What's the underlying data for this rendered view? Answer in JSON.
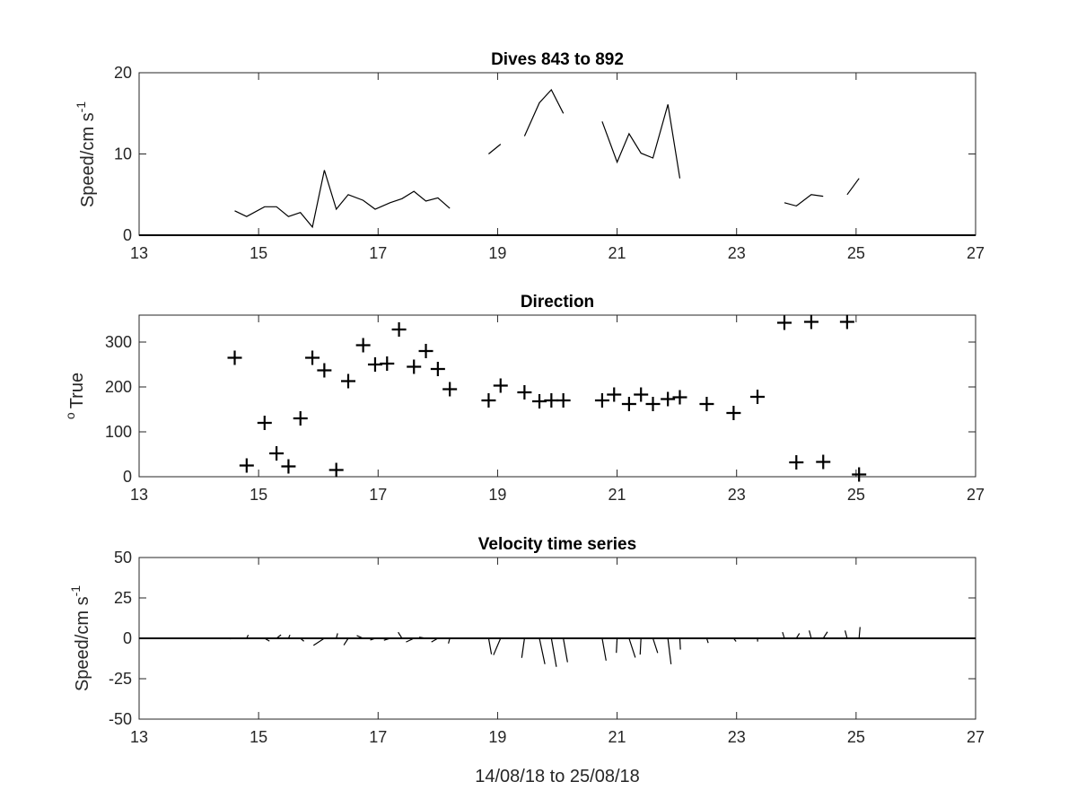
{
  "figure": {
    "xlabel": "14/08/18 to 25/08/18"
  },
  "chart_data": [
    {
      "type": "line",
      "title": "Dives 843 to 892",
      "ylabel": "Speed/cm s",
      "ylabel_sup": "-1",
      "xlim": [
        13,
        27
      ],
      "ylim": [
        0,
        20
      ],
      "xticks": [
        13,
        15,
        17,
        19,
        21,
        23,
        25,
        27
      ],
      "yticks": [
        0,
        10,
        20
      ],
      "baseline": 0,
      "segments": [
        [
          [
            14.6,
            3.0
          ],
          [
            14.8,
            2.3
          ],
          [
            15.1,
            3.5
          ],
          [
            15.3,
            3.5
          ],
          [
            15.5,
            2.3
          ],
          [
            15.7,
            2.8
          ],
          [
            15.9,
            1.0
          ],
          [
            16.1,
            8.0
          ],
          [
            16.3,
            3.2
          ],
          [
            16.5,
            5.0
          ],
          [
            16.75,
            4.3
          ],
          [
            16.95,
            3.2
          ],
          [
            17.2,
            4.0
          ],
          [
            17.4,
            4.5
          ],
          [
            17.6,
            5.4
          ],
          [
            17.8,
            4.2
          ],
          [
            18.0,
            4.6
          ],
          [
            18.2,
            3.3
          ]
        ],
        [
          [
            18.85,
            10.0
          ],
          [
            19.05,
            11.2
          ]
        ],
        [
          [
            19.45,
            12.2
          ],
          [
            19.7,
            16.3
          ],
          [
            19.9,
            17.9
          ],
          [
            20.1,
            15.0
          ]
        ],
        [
          [
            20.75,
            14.0
          ],
          [
            21.0,
            9.0
          ],
          [
            21.2,
            12.5
          ],
          [
            21.4,
            10.1
          ],
          [
            21.6,
            9.5
          ],
          [
            21.85,
            16.1
          ],
          [
            22.05,
            7.0
          ]
        ],
        [
          [
            23.8,
            4.0
          ],
          [
            24.0,
            3.6
          ],
          [
            24.25,
            5.0
          ],
          [
            24.45,
            4.8
          ]
        ],
        [
          [
            24.85,
            5.0
          ],
          [
            25.05,
            7.0
          ]
        ]
      ]
    },
    {
      "type": "scatter",
      "title": "Direction",
      "ylabel": "True",
      "ylabel_sup": "o",
      "xlim": [
        13,
        27
      ],
      "ylim": [
        0,
        360
      ],
      "xticks": [
        13,
        15,
        17,
        19,
        21,
        23,
        25,
        27
      ],
      "yticks": [
        0,
        100,
        200,
        300
      ],
      "marker": "+",
      "points": [
        [
          14.6,
          265
        ],
        [
          14.8,
          25
        ],
        [
          15.1,
          120
        ],
        [
          15.3,
          52
        ],
        [
          15.5,
          23
        ],
        [
          15.7,
          130
        ],
        [
          15.9,
          265
        ],
        [
          16.1,
          237
        ],
        [
          16.3,
          15
        ],
        [
          16.5,
          213
        ],
        [
          16.75,
          293
        ],
        [
          16.95,
          250
        ],
        [
          17.15,
          252
        ],
        [
          17.35,
          328
        ],
        [
          17.6,
          245
        ],
        [
          17.8,
          280
        ],
        [
          18.0,
          240
        ],
        [
          18.2,
          195
        ],
        [
          18.85,
          170
        ],
        [
          19.05,
          203
        ],
        [
          19.45,
          188
        ],
        [
          19.7,
          168
        ],
        [
          19.9,
          170
        ],
        [
          20.1,
          170
        ],
        [
          20.75,
          170
        ],
        [
          20.95,
          183
        ],
        [
          21.2,
          162
        ],
        [
          21.4,
          183
        ],
        [
          21.6,
          162
        ],
        [
          21.85,
          173
        ],
        [
          22.05,
          177
        ],
        [
          22.5,
          162
        ],
        [
          22.95,
          142
        ],
        [
          23.35,
          178
        ],
        [
          23.8,
          343
        ],
        [
          24.0,
          32
        ],
        [
          24.25,
          345
        ],
        [
          24.45,
          33
        ],
        [
          24.85,
          345
        ],
        [
          25.05,
          5
        ]
      ]
    },
    {
      "type": "quiver",
      "title": "Velocity time series",
      "ylabel": "Speed/cm s",
      "ylabel_sup": "-1",
      "xlim": [
        13,
        27
      ],
      "ylim": [
        -50,
        50
      ],
      "xticks": [
        13,
        15,
        17,
        19,
        21,
        23,
        25,
        27
      ],
      "yticks": [
        -50,
        -25,
        0,
        25,
        50
      ],
      "baseline": 0,
      "vectors": [
        [
          14.6,
          3.0,
          265
        ],
        [
          14.8,
          2.3,
          25
        ],
        [
          15.1,
          3.5,
          120
        ],
        [
          15.3,
          3.5,
          52
        ],
        [
          15.5,
          2.3,
          23
        ],
        [
          15.7,
          2.8,
          130
        ],
        [
          15.9,
          1.0,
          265
        ],
        [
          16.1,
          8.0,
          237
        ],
        [
          16.3,
          3.2,
          15
        ],
        [
          16.5,
          5.0,
          213
        ],
        [
          16.75,
          4.3,
          293
        ],
        [
          16.95,
          3.2,
          250
        ],
        [
          17.2,
          4.0,
          252
        ],
        [
          17.4,
          4.5,
          328
        ],
        [
          17.6,
          5.4,
          245
        ],
        [
          17.8,
          4.2,
          280
        ],
        [
          18.0,
          4.6,
          240
        ],
        [
          18.2,
          3.3,
          195
        ],
        [
          18.85,
          10.0,
          170
        ],
        [
          19.05,
          11.2,
          203
        ],
        [
          19.45,
          12.2,
          188
        ],
        [
          19.7,
          16.3,
          168
        ],
        [
          19.9,
          17.9,
          170
        ],
        [
          20.1,
          15.0,
          170
        ],
        [
          20.75,
          14.0,
          170
        ],
        [
          21.0,
          9.0,
          183
        ],
        [
          21.2,
          12.5,
          162
        ],
        [
          21.4,
          10.1,
          183
        ],
        [
          21.6,
          9.5,
          162
        ],
        [
          21.85,
          16.1,
          173
        ],
        [
          22.05,
          7.0,
          177
        ],
        [
          22.5,
          3.0,
          162
        ],
        [
          22.95,
          2.5,
          142
        ],
        [
          23.35,
          2.0,
          178
        ],
        [
          23.8,
          4.0,
          343
        ],
        [
          24.0,
          3.6,
          32
        ],
        [
          24.25,
          5.0,
          345
        ],
        [
          24.45,
          4.8,
          33
        ],
        [
          24.85,
          5.0,
          345
        ],
        [
          25.05,
          7.0,
          5
        ]
      ]
    }
  ]
}
